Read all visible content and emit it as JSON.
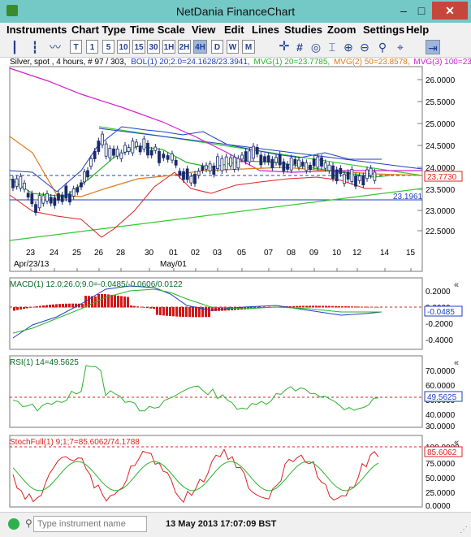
{
  "window": {
    "title": "NetDania FinanceChart",
    "min": "–",
    "max": "□",
    "close": "✕"
  },
  "menu": [
    "Instruments",
    "Chart Type",
    "Time Scale",
    "View",
    "Edit",
    "Lines",
    "Studies",
    "Zoom",
    "Settings",
    "Help"
  ],
  "toolbar": {
    "timeframes": [
      "T",
      "1",
      "5",
      "10",
      "15",
      "30",
      "1H",
      "2H",
      "4H",
      "D",
      "W",
      "M"
    ],
    "selected": "4H",
    "icons": [
      "bar-chart-icon",
      "candlestick-icon",
      "line-chart-icon",
      "crosshair-icon",
      "grid-icon",
      "eye-icon",
      "zoom-in-icon",
      "pin-icon"
    ]
  },
  "main_chart": {
    "header": "Silver, spot , 4 hours, # 97 / 303,",
    "legend": [
      {
        "text": "BOL(1) 20;2.0=24.1628/23.3941,",
        "color": "#1f3fbf"
      },
      {
        "text": "MVG(1) 20=23.7785,",
        "color": "#2bb22b"
      },
      {
        "text": "MVG(2) 50=23.8578,",
        "color": "#e07a1a"
      },
      {
        "text": "MVG(3) 100=23.",
        "color": "#d21fd2"
      }
    ],
    "ylabels": [
      "26.0000",
      "25.5000",
      "25.0000",
      "24.5000",
      "24.0000",
      "23.5000",
      "23.0000",
      "22.5000"
    ],
    "price_tag": "23.7730",
    "hline_tag": "23.1961",
    "xlabels": [
      "23",
      "24",
      "25",
      "26",
      "28",
      "30",
      "01",
      "02",
      "03",
      "05",
      "07",
      "08",
      "09",
      "10",
      "12",
      "14",
      "15"
    ],
    "date_labels": [
      "Apr/23/13",
      "May/01"
    ]
  },
  "macd": {
    "legend": "MACD(1) 12.0;26.0;9.0=-0.0485/-0.0606/0.0122",
    "ylabels": [
      "0.2000",
      "0.0000",
      "-0.2000",
      "-0.4000"
    ],
    "tag": "-0.0485"
  },
  "rsi": {
    "legend": "RSI(1) 14=49.5625",
    "ylabels": [
      "70.0000",
      "60.0000",
      "50.0000",
      "40.0000",
      "30.0000"
    ],
    "tag": "49.5625"
  },
  "stoch": {
    "legend": "StochFull(1) 9;1;7=85.6062/74.1788",
    "ylabels": [
      "100.0000",
      "75.0000",
      "50.0000",
      "25.0000",
      "0.0000"
    ],
    "tag": "85.6062"
  },
  "status": {
    "placeholder": "Type instrument name",
    "time": "13 May 2013 17:07:09 BST"
  }
}
